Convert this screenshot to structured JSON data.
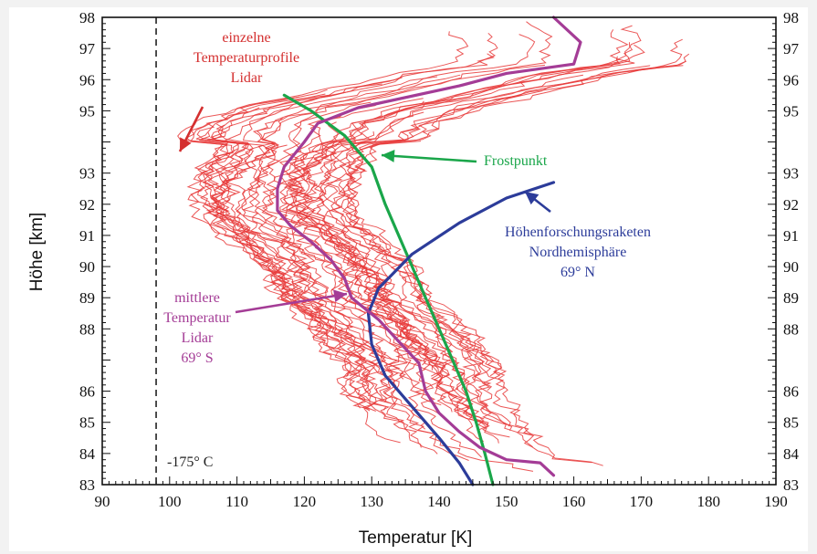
{
  "chart_data": {
    "type": "line",
    "title": "",
    "xlabel": "Temperatur [K]",
    "ylabel": "Höhe [km]",
    "xlim": [
      90,
      190
    ],
    "ylim": [
      83,
      98
    ],
    "x_ticks": [
      90,
      100,
      110,
      120,
      130,
      140,
      150,
      160,
      170,
      180,
      190
    ],
    "y_ticks": [
      83,
      84,
      85,
      86,
      88,
      89,
      90,
      91,
      92,
      93,
      95,
      96,
      97,
      98
    ],
    "grid": false,
    "legend": "none",
    "reference_lines": [
      {
        "label": "-175° C",
        "x": 98,
        "style": "dashed",
        "color": "#222222"
      }
    ],
    "series": [
      {
        "name": "Frostpunkt",
        "color": "#1aa64a",
        "points": [
          [
            117,
            95.5
          ],
          [
            121,
            95.0
          ],
          [
            126,
            94.2
          ],
          [
            130,
            93.2
          ],
          [
            132,
            92.0
          ],
          [
            134,
            91.0
          ],
          [
            136,
            90.0
          ],
          [
            138,
            89.0
          ],
          [
            140,
            88.0
          ],
          [
            142,
            87.0
          ],
          [
            144,
            86.0
          ],
          [
            145.5,
            85.0
          ],
          [
            146.8,
            84.0
          ],
          [
            148,
            83.0
          ]
        ]
      },
      {
        "name": "Höhenforschungsraketen Nordhemisphäre 69° N",
        "color": "#2c3c9a",
        "points": [
          [
            157,
            92.7
          ],
          [
            150,
            92.2
          ],
          [
            143,
            91.4
          ],
          [
            136,
            90.4
          ],
          [
            131,
            89.3
          ],
          [
            129.5,
            88.5
          ],
          [
            130,
            87.5
          ],
          [
            132,
            86.5
          ],
          [
            136,
            85.5
          ],
          [
            140,
            84.5
          ],
          [
            143,
            83.7
          ],
          [
            145,
            83.0
          ]
        ]
      },
      {
        "name": "mittlere Temperatur Lidar 69° S",
        "color": "#a43c96",
        "points": [
          [
            157,
            98.0
          ],
          [
            161,
            97.2
          ],
          [
            160,
            96.5
          ],
          [
            150,
            96.2
          ],
          [
            143,
            95.8
          ],
          [
            128,
            95.1
          ],
          [
            122,
            94.6
          ],
          [
            120,
            94.0
          ],
          [
            117,
            93.2
          ],
          [
            116,
            92.5
          ],
          [
            116,
            91.8
          ],
          [
            118,
            91.3
          ],
          [
            121,
            90.8
          ],
          [
            124,
            90.2
          ],
          [
            126,
            89.6
          ],
          [
            127,
            89.0
          ],
          [
            131,
            88.3
          ],
          [
            134,
            87.6
          ],
          [
            137,
            86.9
          ],
          [
            138,
            86.0
          ],
          [
            140,
            85.3
          ],
          [
            143,
            84.7
          ],
          [
            146,
            84.2
          ],
          [
            150,
            83.8
          ],
          [
            155,
            83.7
          ],
          [
            157,
            83.3
          ]
        ]
      }
    ],
    "annotations": [
      {
        "text_lines": [
          "einzelne",
          "Temperaturprofile",
          "Lidar"
        ],
        "color": "#d42f2f"
      },
      {
        "text_lines": [
          "Frostpunkt"
        ],
        "color": "#1aa64a"
      },
      {
        "text_lines": [
          "Höhenforschungsraketen",
          "Nordhemisphäre",
          "69° N"
        ],
        "color": "#2c3c9a"
      },
      {
        "text_lines": [
          "mittlere",
          "Temperatur",
          "Lidar",
          "69° S"
        ],
        "color": "#a43c96"
      },
      {
        "text_lines": [
          "-175° C"
        ],
        "color": "#222222"
      }
    ],
    "profile_color": "#e8393a"
  }
}
